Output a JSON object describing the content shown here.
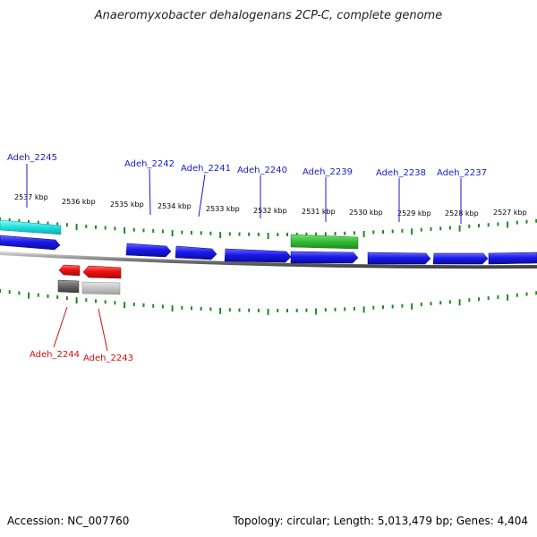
{
  "title": "Anaeromyxobacter dehalogenans 2CP-C, complete genome",
  "footer": {
    "accession": "Accession: NC_007760",
    "summary": "Topology: circular; Length: 5,013,479 bp; Genes: 4,404"
  },
  "colors": {
    "forward_gene": "#1010e0",
    "reverse_gene": "#ee1111",
    "rna_gene": "#33bb33",
    "cyan_feature": "#22dddd",
    "gray_feature": "#666666",
    "light_gray_feature": "#c4c4c4",
    "tick": "#228822",
    "forward_label": "#1a1acc",
    "reverse_label": "#cc1111",
    "backbone": "#777777"
  },
  "scale_labels": [
    "2537 kbp",
    "2536 kbp",
    "2535 kbp",
    "2534 kbp",
    "2533 kbp",
    "2532 kbp",
    "2531 kbp",
    "2530 kbp",
    "2529 kbp",
    "2528 kbp",
    "2527 kbp"
  ],
  "forward_gene_labels": [
    "Adeh_2245",
    "Adeh_2242",
    "Adeh_2241",
    "Adeh_2240",
    "Adeh_2239",
    "Adeh_2238",
    "Adeh_2237"
  ],
  "reverse_gene_labels": [
    "Adeh_2244",
    "Adeh_2243"
  ]
}
